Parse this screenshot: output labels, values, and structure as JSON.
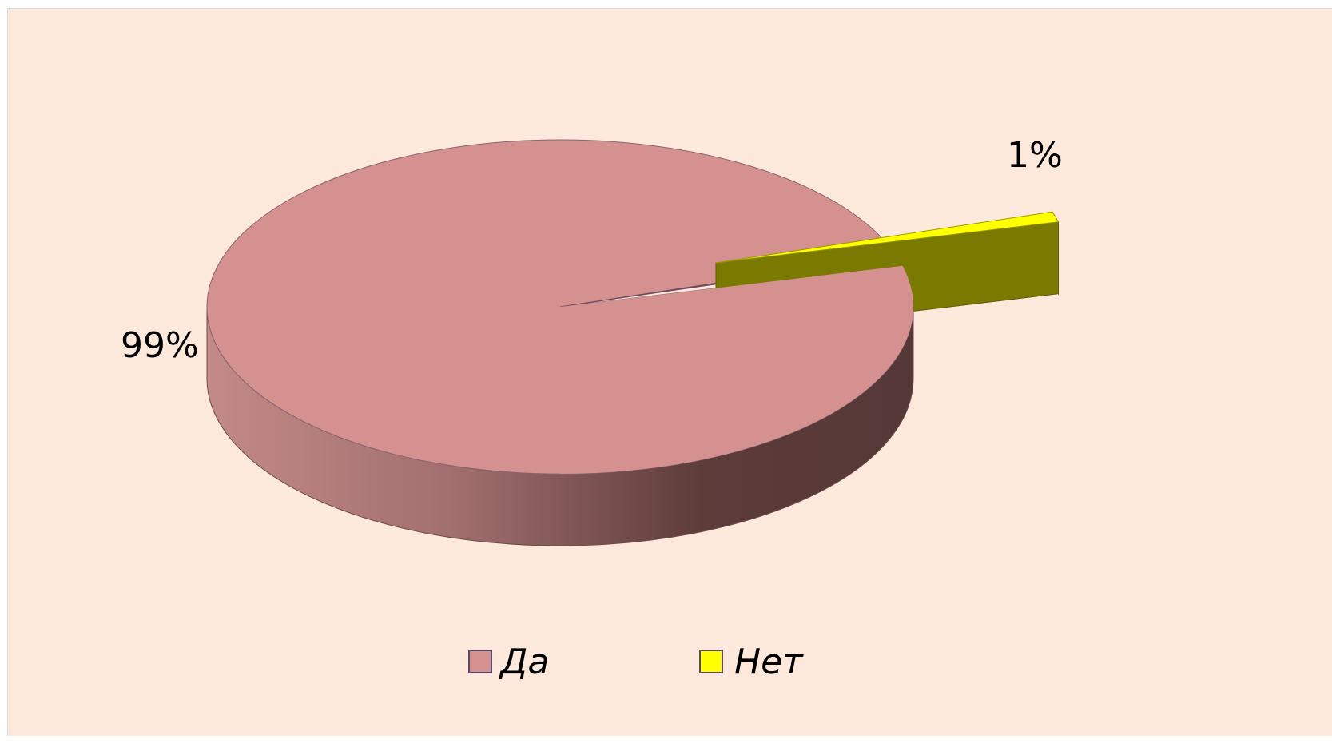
{
  "chart_data": {
    "type": "pie",
    "style": "3d-exploded",
    "categories": [
      "Да",
      "Нет"
    ],
    "values": [
      99,
      1
    ],
    "data_labels": [
      "99%",
      "1%"
    ],
    "colors": {
      "Да": "#d59090",
      "Нет": "#ffff00"
    },
    "side_colors": {
      "Нет": "#7a7a00"
    },
    "background": "#fde9dc",
    "legend": {
      "position": "bottom",
      "items": [
        {
          "label": "Да",
          "color": "#d59090"
        },
        {
          "label": "Нет",
          "color": "#ffff00"
        }
      ]
    }
  }
}
